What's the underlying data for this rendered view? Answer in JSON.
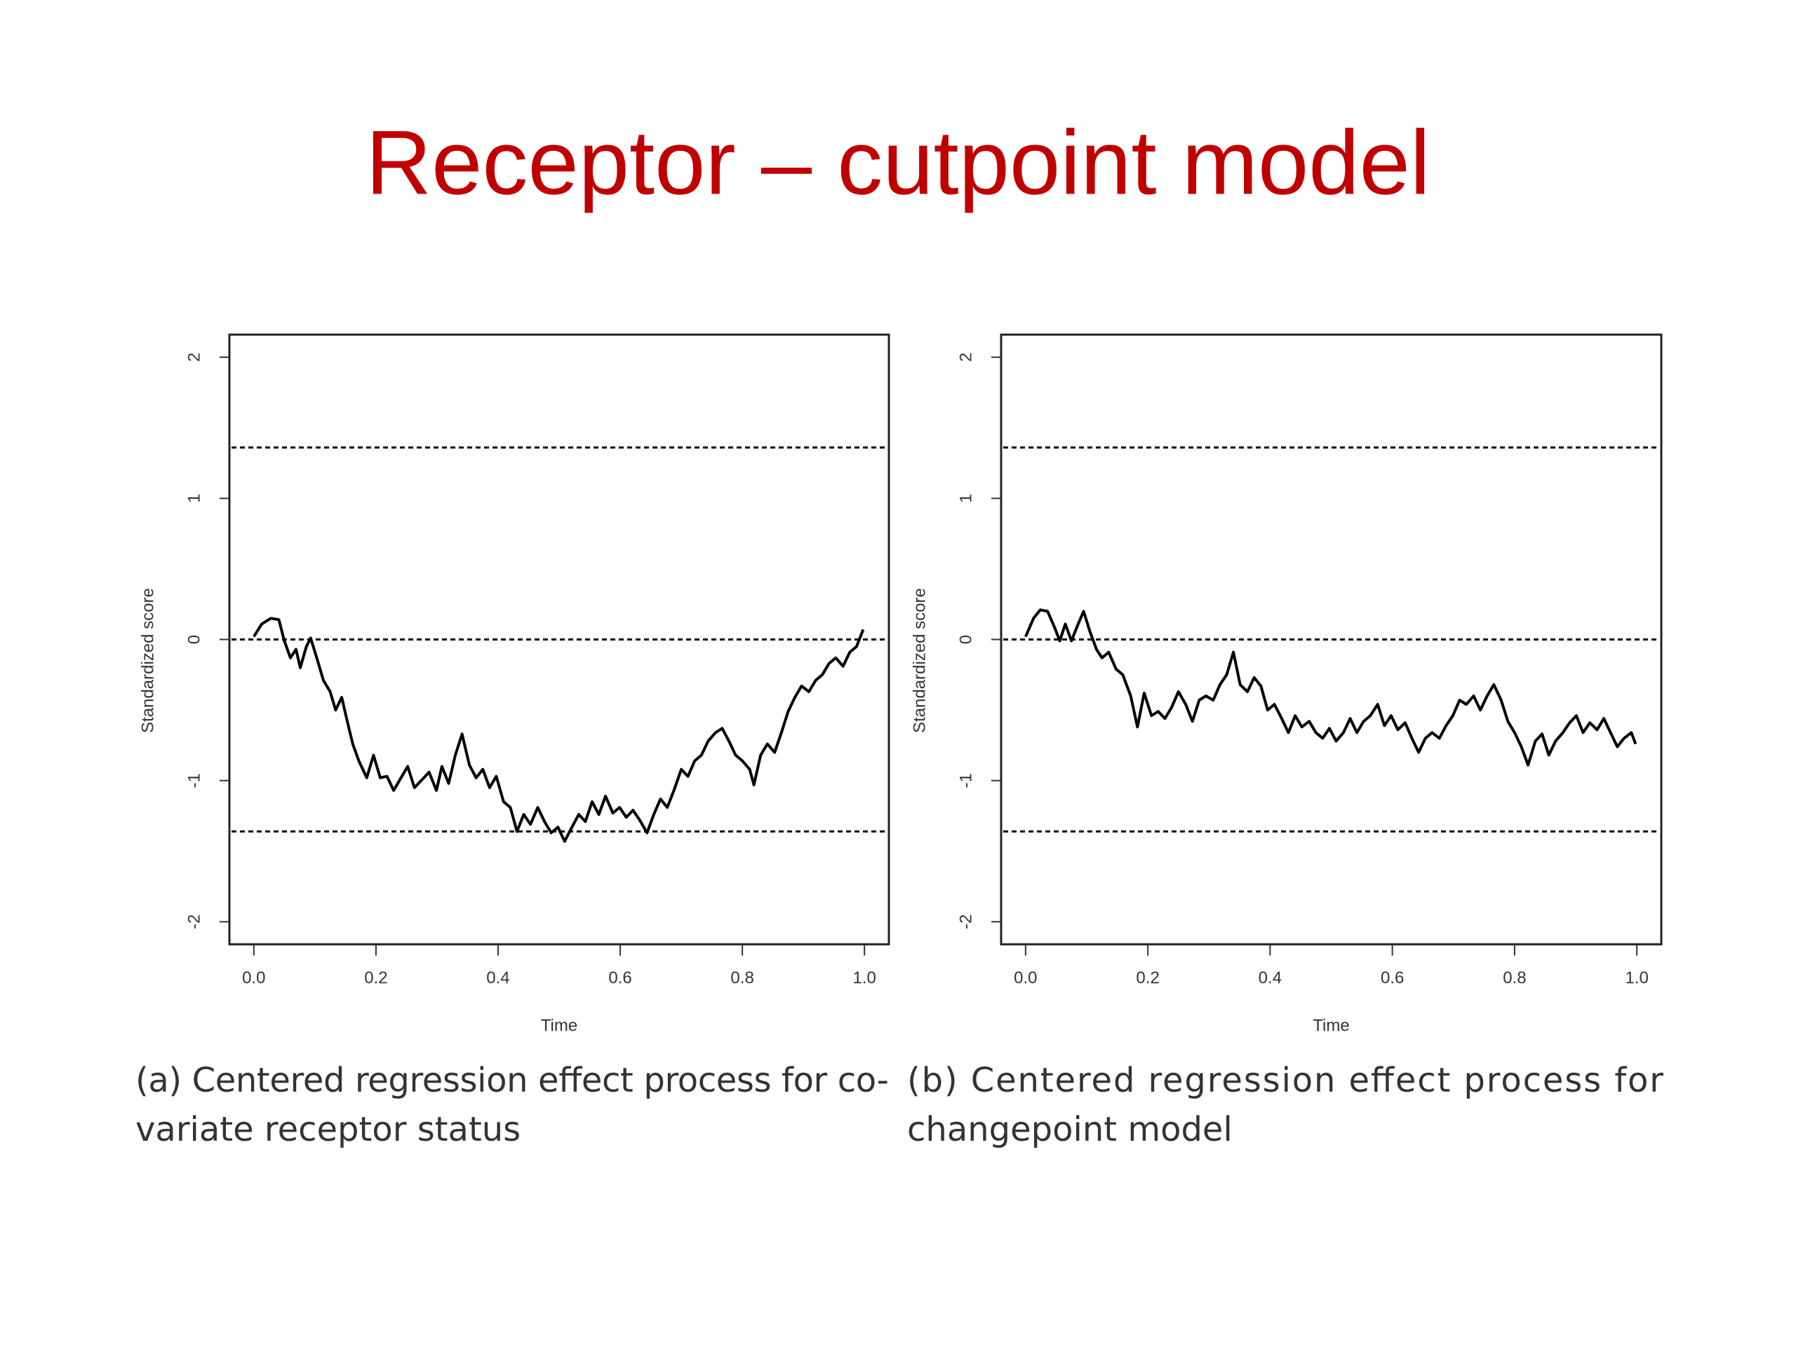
{
  "slide": {
    "title": "Receptor – cutpoint model"
  },
  "chart_data": [
    {
      "type": "line",
      "xlabel": "Time",
      "ylabel": "Standardized score",
      "caption": [
        "(a) Centered regression effect process for co-",
        "variate receptor status"
      ],
      "xlim": [
        -0.04,
        1.04
      ],
      "ylim": [
        -2.16,
        2.16
      ],
      "xticks": [
        {
          "value": 0,
          "label": "0.0"
        },
        0.2,
        0.4,
        0.6,
        0.8,
        {
          "value": 1,
          "label": "1.0"
        }
      ],
      "yticks": [
        -2,
        -1,
        0,
        1,
        2
      ],
      "hlines": [
        1.36,
        0,
        -1.36
      ],
      "color": "#000000",
      "x": [
        0,
        0.013,
        0.028,
        0.041,
        0.05,
        0.06,
        0.069,
        0.076,
        0.086,
        0.093,
        0.103,
        0.114,
        0.125,
        0.134,
        0.144,
        0.153,
        0.162,
        0.172,
        0.185,
        0.196,
        0.207,
        0.218,
        0.229,
        0.241,
        0.252,
        0.263,
        0.274,
        0.287,
        0.299,
        0.308,
        0.319,
        0.33,
        0.341,
        0.353,
        0.364,
        0.375,
        0.386,
        0.397,
        0.409,
        0.42,
        0.431,
        0.442,
        0.453,
        0.465,
        0.476,
        0.487,
        0.498,
        0.509,
        0.521,
        0.532,
        0.543,
        0.554,
        0.565,
        0.576,
        0.588,
        0.599,
        0.61,
        0.621,
        0.632,
        0.644,
        0.655,
        0.666,
        0.677,
        0.688,
        0.7,
        0.711,
        0.722,
        0.733,
        0.744,
        0.756,
        0.767,
        0.778,
        0.789,
        0.8,
        0.812,
        0.819,
        0.83,
        0.841,
        0.853,
        0.864,
        0.875,
        0.886,
        0.897,
        0.909,
        0.92,
        0.931,
        0.942,
        0.953,
        0.965,
        0.976,
        0.987,
        0.998
      ],
      "values": [
        0.02,
        0.11,
        0.15,
        0.14,
        -0.01,
        -0.13,
        -0.07,
        -0.2,
        -0.05,
        0.01,
        -0.13,
        -0.29,
        -0.37,
        -0.5,
        -0.41,
        -0.58,
        -0.74,
        -0.86,
        -0.98,
        -0.82,
        -0.98,
        -0.97,
        -1.07,
        -0.98,
        -0.9,
        -1.05,
        -1,
        -0.94,
        -1.07,
        -0.9,
        -1.02,
        -0.82,
        -0.67,
        -0.89,
        -0.98,
        -0.92,
        -1.05,
        -0.97,
        -1.15,
        -1.19,
        -1.36,
        -1.24,
        -1.31,
        -1.19,
        -1.29,
        -1.37,
        -1.33,
        -1.43,
        -1.33,
        -1.24,
        -1.29,
        -1.15,
        -1.24,
        -1.11,
        -1.23,
        -1.19,
        -1.26,
        -1.21,
        -1.28,
        -1.37,
        -1.24,
        -1.13,
        -1.19,
        -1.07,
        -0.92,
        -0.97,
        -0.86,
        -0.82,
        -0.72,
        -0.66,
        -0.63,
        -0.72,
        -0.82,
        -0.86,
        -0.92,
        -1.03,
        -0.82,
        -0.74,
        -0.8,
        -0.66,
        -0.51,
        -0.41,
        -0.33,
        -0.37,
        -0.29,
        -0.25,
        -0.17,
        -0.13,
        -0.19,
        -0.09,
        -0.05,
        0.07
      ]
    },
    {
      "type": "line",
      "xlabel": "Time",
      "ylabel": "Standardized score",
      "caption": [
        "(b) Centered regression effect process for",
        "changepoint model"
      ],
      "xlim": [
        -0.04,
        1.04
      ],
      "ylim": [
        -2.16,
        2.16
      ],
      "xticks": [
        {
          "value": 0,
          "label": "0.0"
        },
        0.2,
        0.4,
        0.6,
        0.8,
        {
          "value": 1,
          "label": "1.0"
        }
      ],
      "yticks": [
        -2,
        -1,
        0,
        1,
        2
      ],
      "hlines": [
        1.36,
        0,
        -1.36
      ],
      "color": "#000000",
      "x": [
        0,
        0.013,
        0.024,
        0.036,
        0.047,
        0.056,
        0.065,
        0.075,
        0.086,
        0.095,
        0.105,
        0.116,
        0.125,
        0.136,
        0.148,
        0.159,
        0.172,
        0.183,
        0.194,
        0.206,
        0.217,
        0.228,
        0.239,
        0.25,
        0.262,
        0.273,
        0.284,
        0.295,
        0.307,
        0.318,
        0.329,
        0.34,
        0.351,
        0.363,
        0.374,
        0.385,
        0.396,
        0.407,
        0.419,
        0.43,
        0.441,
        0.452,
        0.464,
        0.475,
        0.486,
        0.497,
        0.508,
        0.52,
        0.531,
        0.542,
        0.553,
        0.564,
        0.576,
        0.587,
        0.598,
        0.609,
        0.621,
        0.632,
        0.643,
        0.654,
        0.665,
        0.677,
        0.688,
        0.699,
        0.71,
        0.721,
        0.733,
        0.744,
        0.755,
        0.766,
        0.778,
        0.789,
        0.8,
        0.811,
        0.822,
        0.834,
        0.845,
        0.856,
        0.867,
        0.879,
        0.89,
        0.901,
        0.912,
        0.923,
        0.935,
        0.946,
        0.957,
        0.968,
        0.979,
        0.991,
        0.998
      ],
      "values": [
        0.02,
        0.15,
        0.21,
        0.2,
        0.09,
        -0.01,
        0.11,
        -0.01,
        0.11,
        0.2,
        0.06,
        -0.07,
        -0.13,
        -0.09,
        -0.21,
        -0.25,
        -0.4,
        -0.62,
        -0.38,
        -0.54,
        -0.51,
        -0.56,
        -0.48,
        -0.37,
        -0.46,
        -0.58,
        -0.43,
        -0.4,
        -0.43,
        -0.32,
        -0.25,
        -0.09,
        -0.32,
        -0.37,
        -0.27,
        -0.33,
        -0.5,
        -0.46,
        -0.56,
        -0.66,
        -0.54,
        -0.62,
        -0.58,
        -0.66,
        -0.7,
        -0.63,
        -0.72,
        -0.66,
        -0.56,
        -0.66,
        -0.58,
        -0.54,
        -0.46,
        -0.61,
        -0.54,
        -0.64,
        -0.59,
        -0.7,
        -0.8,
        -0.7,
        -0.66,
        -0.7,
        -0.61,
        -0.54,
        -0.43,
        -0.46,
        -0.4,
        -0.5,
        -0.4,
        -0.32,
        -0.43,
        -0.58,
        -0.66,
        -0.76,
        -0.89,
        -0.72,
        -0.67,
        -0.82,
        -0.72,
        -0.66,
        -0.59,
        -0.54,
        -0.66,
        -0.59,
        -0.64,
        -0.56,
        -0.66,
        -0.76,
        -0.7,
        -0.66,
        -0.74
      ]
    }
  ]
}
